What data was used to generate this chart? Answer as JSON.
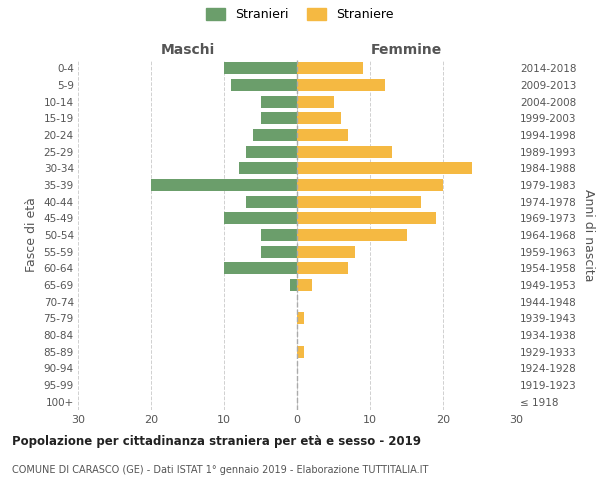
{
  "age_groups": [
    "100+",
    "95-99",
    "90-94",
    "85-89",
    "80-84",
    "75-79",
    "70-74",
    "65-69",
    "60-64",
    "55-59",
    "50-54",
    "45-49",
    "40-44",
    "35-39",
    "30-34",
    "25-29",
    "20-24",
    "15-19",
    "10-14",
    "5-9",
    "0-4"
  ],
  "birth_years": [
    "≤ 1918",
    "1919-1923",
    "1924-1928",
    "1929-1933",
    "1934-1938",
    "1939-1943",
    "1944-1948",
    "1949-1953",
    "1954-1958",
    "1959-1963",
    "1964-1968",
    "1969-1973",
    "1974-1978",
    "1979-1983",
    "1984-1988",
    "1989-1993",
    "1994-1998",
    "1999-2003",
    "2004-2008",
    "2009-2013",
    "2014-2018"
  ],
  "maschi": [
    0,
    0,
    0,
    0,
    0,
    0,
    0,
    1,
    10,
    5,
    5,
    10,
    7,
    20,
    8,
    7,
    6,
    5,
    5,
    9,
    10
  ],
  "femmine": [
    0,
    0,
    0,
    1,
    0,
    1,
    0,
    2,
    7,
    8,
    15,
    19,
    17,
    20,
    24,
    13,
    7,
    6,
    5,
    12,
    9
  ],
  "color_maschi": "#6b9e6b",
  "color_femmine": "#f5b942",
  "title": "Popolazione per cittadinanza straniera per età e sesso - 2019",
  "subtitle": "COMUNE DI CARASCO (GE) - Dati ISTAT 1° gennaio 2019 - Elaborazione TUTTITALIA.IT",
  "ylabel_left": "Fasce di età",
  "ylabel_right": "Anni di nascita",
  "xlabel_left": "Maschi",
  "xlabel_right": "Femmine",
  "legend_maschi": "Stranieri",
  "legend_femmine": "Straniere",
  "xlim": 30,
  "background_color": "#ffffff",
  "grid_color": "#d0d0d0"
}
